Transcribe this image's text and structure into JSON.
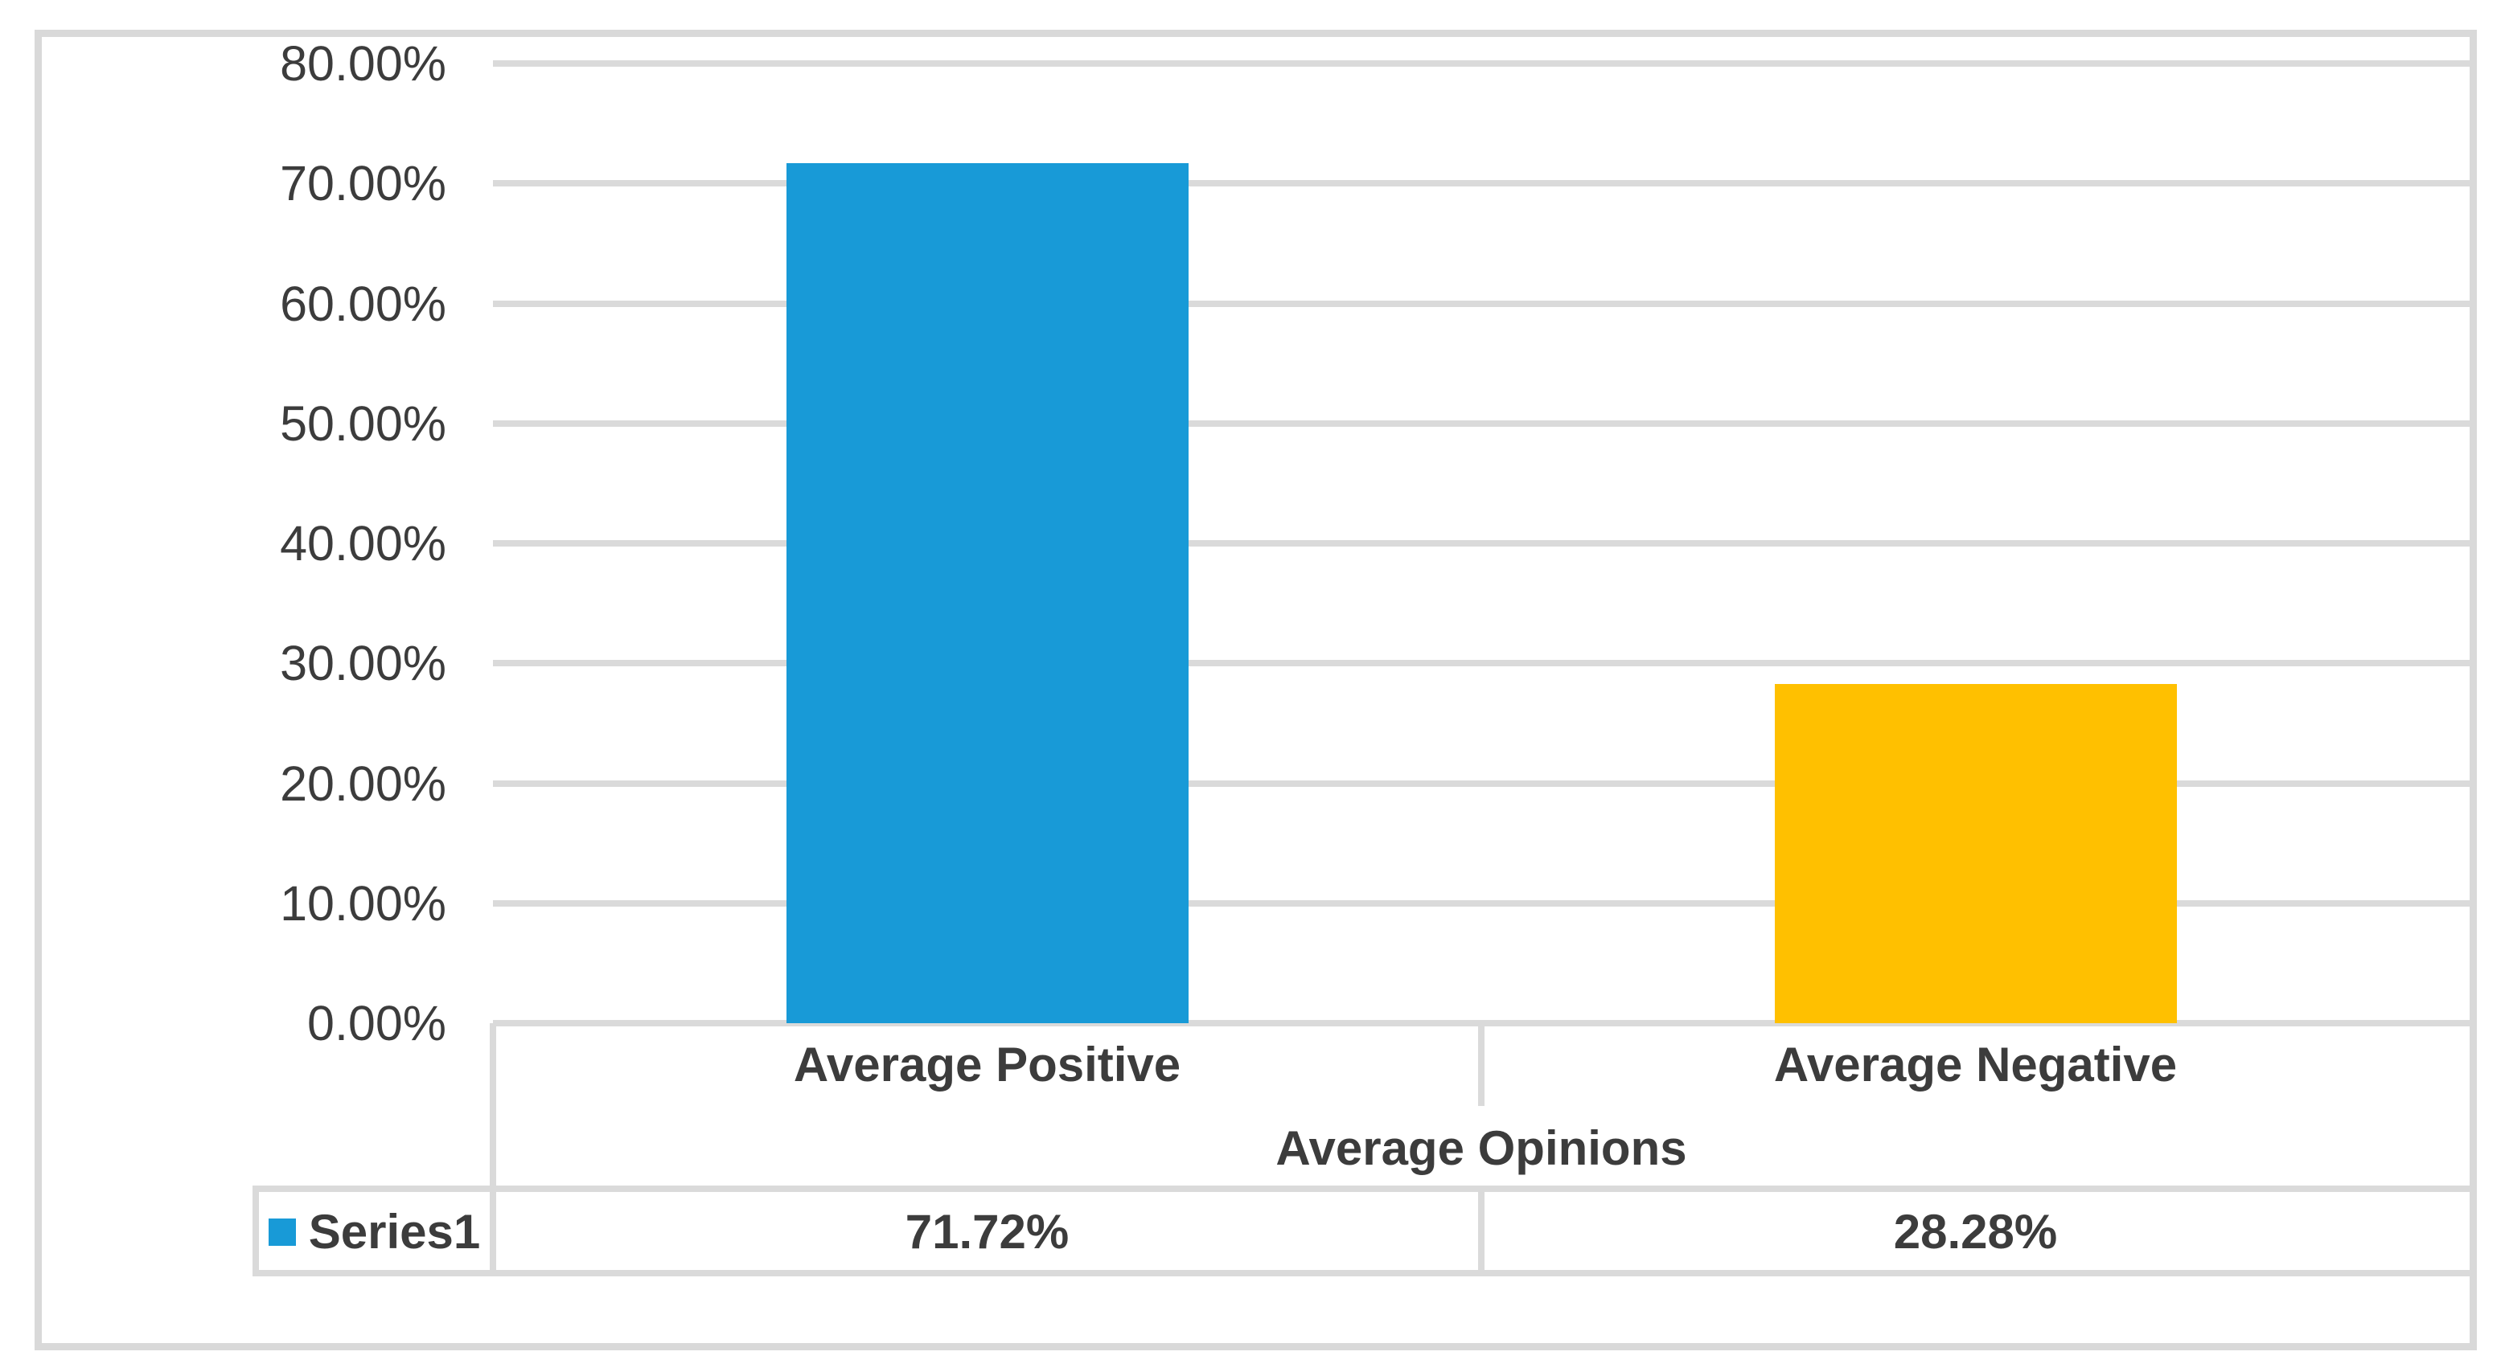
{
  "chart_data": {
    "type": "bar",
    "title": "",
    "categories": [
      "Average Positive",
      "Average Negative"
    ],
    "series": [
      {
        "name": "Series1",
        "values": [
          71.72,
          28.28
        ],
        "data_table_labels": [
          "71.72%",
          "28.28%"
        ]
      }
    ],
    "bar_colors": [
      "#189AD7",
      "#FFC000"
    ],
    "xlabel": "Average Opinions",
    "ylabel": "",
    "ylim": [
      0,
      80
    ],
    "ytick_step": 10,
    "ytick_labels": [
      "0.00%",
      "10.00%",
      "20.00%",
      "30.00%",
      "40.00%",
      "50.00%",
      "60.00%",
      "70.00%",
      "80.00%"
    ],
    "grid": true,
    "legend_position": "data-table-left",
    "data_table_shown": true,
    "colors": {
      "gridline": "#DADADA",
      "chart_border": "#D9D9D9",
      "text": "#3C3C3C",
      "background": "#FFFFFF"
    }
  }
}
